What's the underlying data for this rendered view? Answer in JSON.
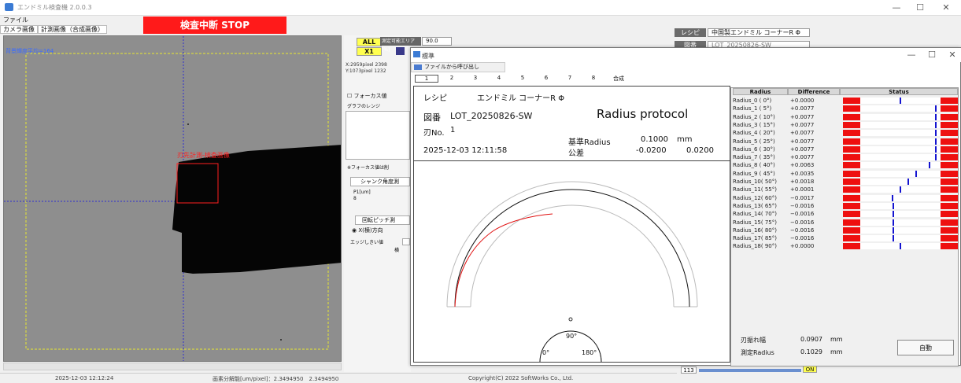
{
  "window": {
    "title": "エンドミル検査機 2.0.0.3",
    "minimize": "—",
    "maximize": "☐",
    "close": "✕"
  },
  "menu": {
    "file": "ファイル"
  },
  "tabs": [
    "カメラ画像",
    "計測画像（合成画像）"
  ],
  "stop_button": "検査中断 STOP",
  "camera": {
    "label_top": "背景輝度平均=164",
    "label_roi": "刃先計測-検査画像"
  },
  "mid": {
    "all": "ALL",
    "x1": "X1",
    "measure_area_label": "測定可能エリア [%]",
    "measure_area_value": "90.0",
    "coord_x": "X:2959pixel 2398",
    "coord_y": "Y:1073pixel 1232",
    "focus_label": "フォーカス値",
    "graph_range": "グラフのレンジ",
    "focus_note": "※フォーカス値は削",
    "shank_btn": "シャンク角度測",
    "p1_label": "P1[um]",
    "p1_value": "8",
    "pitch_btn": "回転ピッチ測",
    "xdir": "X(横)方向",
    "edge_label": "エッジしきい値",
    "edge_suffix": "横"
  },
  "right": {
    "recipe_label": "レシピ",
    "recipe_value": "中国製エンドミル コーナーR Φ",
    "drawing_label": "図番",
    "drawing_value": "LOT_20250826-SW",
    "bottom_value": "113",
    "on_btn": "ON"
  },
  "dialog": {
    "title": "標準",
    "minimize": "—",
    "maximize": "☐",
    "close": "✕",
    "toolbar": "ファイルから呼び出し",
    "tabs": [
      "1",
      "2",
      "3",
      "4",
      "5",
      "6",
      "7",
      "8",
      "合成"
    ],
    "report": {
      "recipe_label": "レシピ",
      "recipe_value": "エンドミル コーナーR Φ",
      "drawing_label": "図番",
      "drawing_value": "LOT_20250826-SW",
      "protocol": "Radius protocol",
      "blade_label": "刃No.",
      "blade_value": "1",
      "base_label": "基準Radius",
      "base_value": "0.1000",
      "base_unit": "mm",
      "datetime": "2025-12-03 12:11:58",
      "tol_label": "公差",
      "tol_min": "-0.0200",
      "tol_max": "0.0200",
      "angle_90": "90°",
      "angle_0": "0°",
      "angle_180": "180°"
    },
    "table": {
      "headers": [
        "Radius",
        "Difference",
        "Status"
      ],
      "rows": [
        {
          "name": "Radius_0 (  0°)",
          "diff": "+0.0000",
          "pos": 0.5
        },
        {
          "name": "Radius_1 (  5°)",
          "diff": "+0.0077",
          "pos": 0.81
        },
        {
          "name": "Radius_2 ( 10°)",
          "diff": "+0.0077",
          "pos": 0.81
        },
        {
          "name": "Radius_3 ( 15°)",
          "diff": "+0.0077",
          "pos": 0.81
        },
        {
          "name": "Radius_4 ( 20°)",
          "diff": "+0.0077",
          "pos": 0.81
        },
        {
          "name": "Radius_5 ( 25°)",
          "diff": "+0.0077",
          "pos": 0.81
        },
        {
          "name": "Radius_6 ( 30°)",
          "diff": "+0.0077",
          "pos": 0.81
        },
        {
          "name": "Radius_7 ( 35°)",
          "diff": "+0.0077",
          "pos": 0.81
        },
        {
          "name": "Radius_8 ( 40°)",
          "diff": "+0.0063",
          "pos": 0.75
        },
        {
          "name": "Radius_9 ( 45°)",
          "diff": "+0.0035",
          "pos": 0.64
        },
        {
          "name": "Radius_10( 50°)",
          "diff": "+0.0018",
          "pos": 0.57
        },
        {
          "name": "Radius_11( 55°)",
          "diff": "+0.0001",
          "pos": 0.5
        },
        {
          "name": "Radius_12( 60°)",
          "diff": "−0.0017",
          "pos": 0.43
        },
        {
          "name": "Radius_13( 65°)",
          "diff": "−0.0016",
          "pos": 0.44
        },
        {
          "name": "Radius_14( 70°)",
          "diff": "−0.0016",
          "pos": 0.44
        },
        {
          "name": "Radius_15( 75°)",
          "diff": "−0.0016",
          "pos": 0.44
        },
        {
          "name": "Radius_16( 80°)",
          "diff": "−0.0016",
          "pos": 0.44
        },
        {
          "name": "Radius_17( 85°)",
          "diff": "−0.0016",
          "pos": 0.44
        },
        {
          "name": "Radius_18( 90°)",
          "diff": "+0.0000",
          "pos": 0.5
        }
      ],
      "runout_label": "刃振れ幅",
      "runout_value": "0.0907",
      "runout_unit": "mm",
      "measured_label": "測定Radius",
      "measured_value": "0.1029",
      "measured_unit": "mm"
    },
    "auto_button": "自動"
  },
  "status": {
    "left": "2025-12-03 12:12:24",
    "mid": "画素分解能[um/pixel]：2.3494950　2.3494950",
    "right": "Copyright(C) 2022 SoftWorks Co., Ltd."
  },
  "colors": {
    "stop": "#ff1a1a",
    "tolerance": "#ee1010",
    "marker": "#1414d0",
    "highlight": "#ffff50"
  }
}
